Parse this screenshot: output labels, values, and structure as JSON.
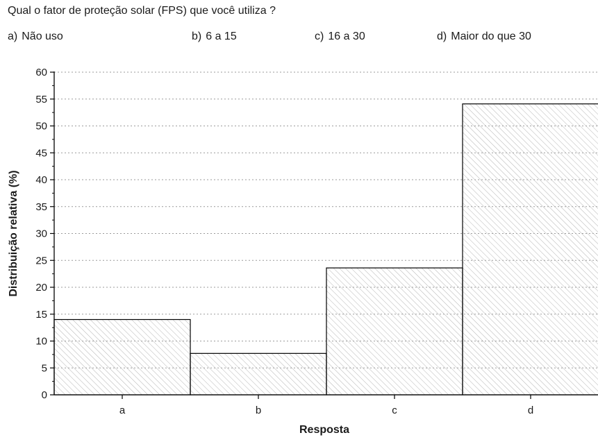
{
  "survey": {
    "question": "Qual o fator de proteção solar (FPS) que você utiliza ?",
    "options": [
      {
        "letter": "a)",
        "text": "Não uso"
      },
      {
        "letter": "b)",
        "text": "6 a 15"
      },
      {
        "letter": "c)",
        "text": "16 a 30"
      },
      {
        "letter": "d)",
        "text": "Maior do que 30"
      }
    ]
  },
  "chart_data": {
    "type": "bar",
    "categories": [
      "a",
      "b",
      "c",
      "d"
    ],
    "values": [
      14.0,
      7.7,
      23.6,
      54.1
    ],
    "xlabel": "Resposta",
    "ylabel": "Distribuição relativa (%)",
    "ylim": [
      0,
      60
    ],
    "yticks": [
      "0",
      "5",
      "10",
      "15",
      "20",
      "25",
      "30",
      "35",
      "40",
      "45",
      "50",
      "55",
      "60"
    ],
    "grid": true,
    "bar_fill": "hatched",
    "colors": {
      "bar_edge": "#000000",
      "hatch": "#b5b5b5",
      "grid": "#9a9a9a"
    }
  }
}
